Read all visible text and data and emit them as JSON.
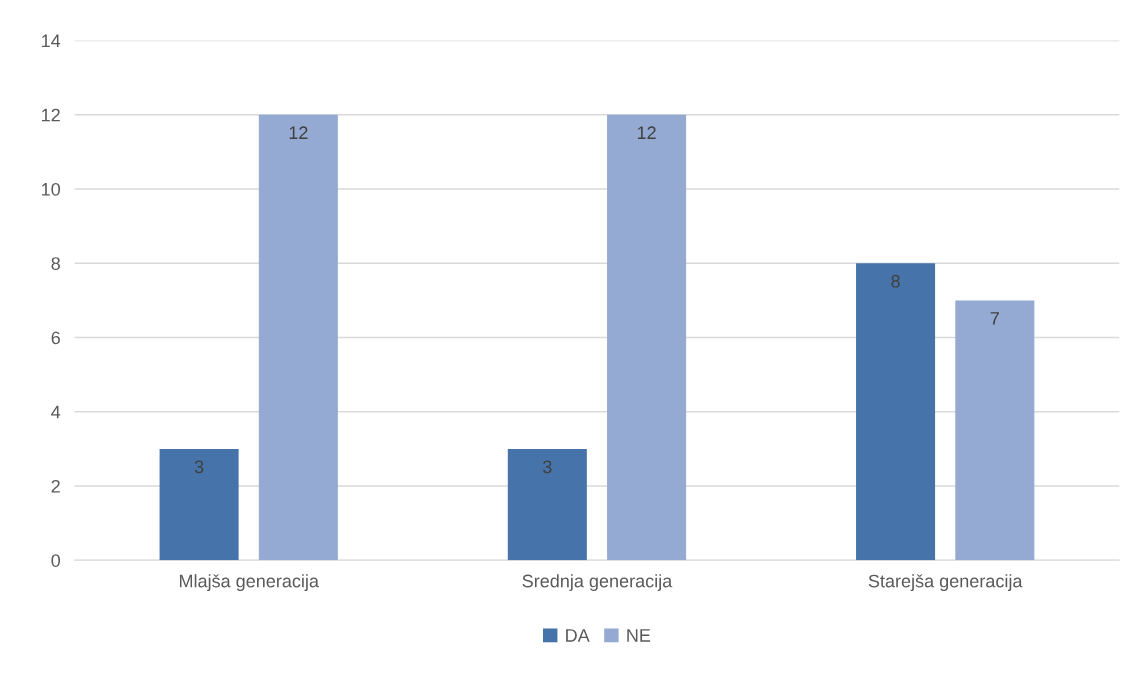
{
  "chart_data": {
    "type": "bar",
    "categories": [
      "Mlajša generacija",
      "Srednja generacija",
      "Starejša generacija"
    ],
    "series": [
      {
        "name": "DA",
        "color": "#4674aa",
        "values": [
          3,
          3,
          8
        ]
      },
      {
        "name": "NE",
        "color": "#95aad2",
        "values": [
          12,
          12,
          7
        ]
      }
    ],
    "ylim": [
      0,
      14
    ],
    "yticks": [
      0,
      2,
      4,
      6,
      8,
      10,
      12,
      14
    ],
    "grid": "y",
    "legend": "bottom",
    "data_labels": true
  }
}
